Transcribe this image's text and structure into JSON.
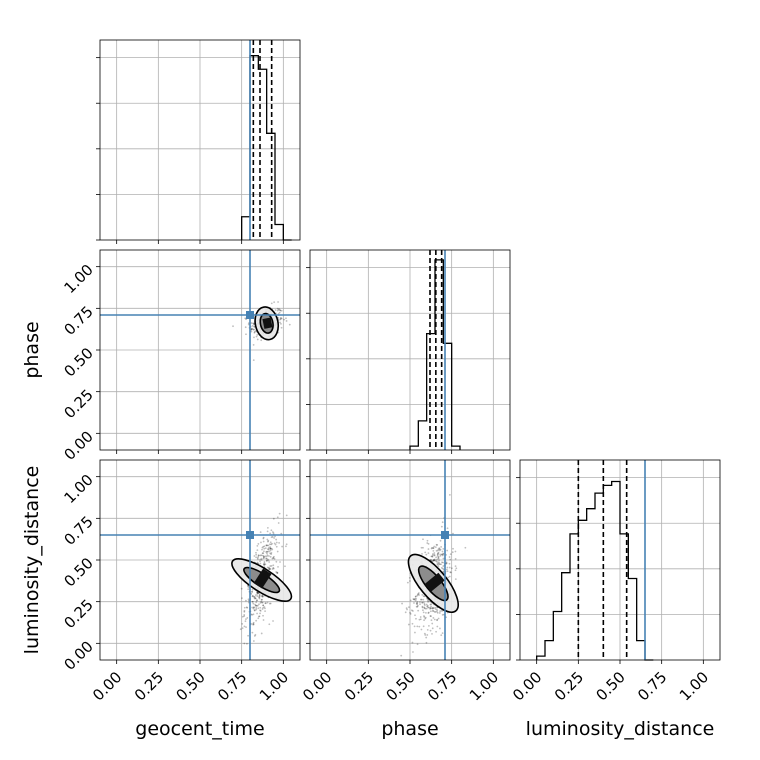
{
  "chart_data": {
    "type": "corner",
    "parameters": [
      "geocent_time",
      "phase",
      "luminosity_distance"
    ],
    "axis_range": [
      -0.1,
      1.1
    ],
    "tick_values": [
      0.0,
      0.25,
      0.5,
      0.75,
      1.0
    ],
    "tick_labels": [
      "0.00",
      "0.25",
      "0.50",
      "0.75",
      "1.00"
    ],
    "grid": true,
    "colors": {
      "truth": "#4682b4",
      "hist": "#000000",
      "quantile": "#000000",
      "contour_fill_outer": "#e8e8e8",
      "contour_fill_inner": "#8c8c8c"
    },
    "truths": {
      "geocent_time": 0.8,
      "phase": 0.71,
      "luminosity_distance": 0.65
    },
    "quantiles": {
      "geocent_time": [
        0.82,
        0.86,
        0.93
      ],
      "phase": [
        0.62,
        0.655,
        0.69
      ],
      "luminosity_distance": [
        0.25,
        0.4,
        0.54
      ]
    },
    "histograms": {
      "geocent_time": {
        "edges": [
          0.75,
          0.8,
          0.85,
          0.9,
          0.95,
          1.0,
          1.05
        ],
        "counts": [
          0.12,
          0.95,
          0.88,
          0.55,
          0.08,
          0.0
        ]
      },
      "phase": {
        "edges": [
          0.5,
          0.55,
          0.6,
          0.65,
          0.7,
          0.75,
          0.8
        ],
        "counts": [
          0.02,
          0.15,
          0.6,
          0.98,
          0.55,
          0.02
        ]
      },
      "luminosity_distance": {
        "edges": [
          0.0,
          0.05,
          0.1,
          0.15,
          0.2,
          0.25,
          0.3,
          0.35,
          0.4,
          0.45,
          0.5,
          0.55,
          0.6,
          0.65,
          0.7
        ],
        "counts": [
          0.02,
          0.1,
          0.25,
          0.45,
          0.65,
          0.72,
          0.78,
          0.86,
          0.9,
          0.92,
          0.65,
          0.42,
          0.1,
          0.0
        ]
      }
    },
    "scatter_2d": {
      "phase_vs_geocent_time": {
        "x_center": 0.9,
        "x_spread": 0.05,
        "y_center": 0.66,
        "y_spread": 0.05,
        "correlation": 0.2,
        "n_points": 300
      },
      "luminosity_distance_vs_geocent_time": {
        "x_center": 0.87,
        "x_spread": 0.05,
        "y_center": 0.38,
        "y_spread": 0.14,
        "correlation": 0.55,
        "n_points": 450
      },
      "luminosity_distance_vs_phase": {
        "x_center": 0.64,
        "x_spread": 0.06,
        "y_center": 0.36,
        "y_spread": 0.14,
        "correlation": 0.35,
        "n_points": 550
      }
    }
  }
}
